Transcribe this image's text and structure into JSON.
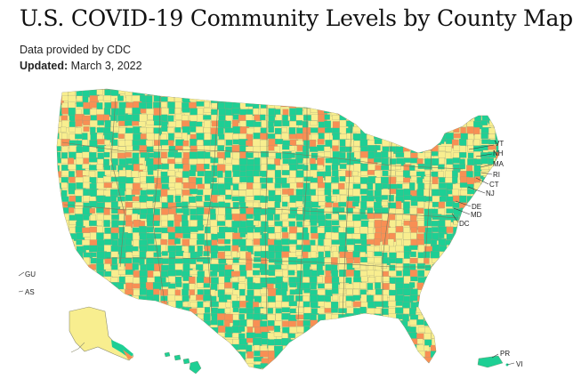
{
  "page": {
    "title": "U.S. COVID-19 Community Levels by County Map",
    "source_text": "Data provided by CDC",
    "updated_label": "Updated:",
    "updated_date": "March 3, 2022"
  },
  "map": {
    "colors": {
      "low": "#1ecf94",
      "medium": "#f8ee8f",
      "high": "#f88f54",
      "border": "#9a9a7a"
    },
    "territory_labels": [
      "GU",
      "AS",
      "PR",
      "VI"
    ],
    "state_callouts": [
      "VT",
      "NH",
      "MA",
      "RI",
      "CT",
      "NJ",
      "DE",
      "MD",
      "DC"
    ]
  }
}
